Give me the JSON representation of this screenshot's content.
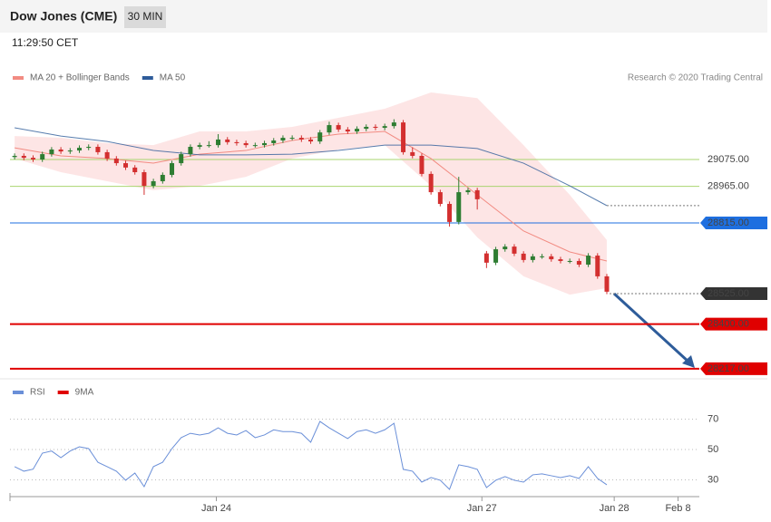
{
  "header": {
    "title": "Dow Jones (CME)",
    "interval": "30 MIN",
    "time": "11:29:50 CET",
    "credit": "Research © 2020 Trading Central"
  },
  "chart_data": [
    {
      "type": "candlestick",
      "legend": [
        {
          "name": "MA 20 + Bollinger Bands",
          "color": "#f28b82"
        },
        {
          "name": "MA 50",
          "color": "#2e5c9a"
        }
      ],
      "xlim": [
        -0.5,
        74
      ],
      "ylim": [
        28187,
        29376
      ],
      "up_color": "#2e7d32",
      "down_color": "#d32f2f",
      "open": [
        29085,
        29090,
        29082,
        29075,
        29097,
        29116,
        29108,
        29112,
        29123,
        29127,
        29105,
        29079,
        29060,
        29042,
        29023,
        28967,
        28986,
        29012,
        29060,
        29097,
        29127,
        29134,
        29134,
        29157,
        29146,
        29142,
        29134,
        29134,
        29142,
        29153,
        29164,
        29164,
        29157,
        29149,
        29186,
        29216,
        29198,
        29190,
        29201,
        29209,
        29205,
        29212,
        29227,
        29105,
        29090,
        29016,
        28941,
        28893,
        28819,
        28941,
        28949,
        28690,
        28652,
        28707,
        28718,
        28689,
        28663,
        28678,
        28678,
        28666,
        28659,
        28659,
        28644,
        28681,
        28596
      ],
      "high": [
        29100,
        29100,
        29092,
        29107,
        29126,
        29126,
        29122,
        29133,
        29137,
        29137,
        29115,
        29089,
        29070,
        29052,
        29033,
        28996,
        29022,
        29070,
        29107,
        29137,
        29144,
        29150,
        29179,
        29167,
        29156,
        29152,
        29144,
        29152,
        29163,
        29174,
        29174,
        29174,
        29167,
        29196,
        29230,
        29226,
        29208,
        29211,
        29219,
        29219,
        29222,
        29240,
        29237,
        29125,
        29100,
        29026,
        28951,
        28903,
        29004,
        28959,
        28959,
        28700,
        28717,
        28728,
        28728,
        28699,
        28688,
        28688,
        28688,
        28676,
        28669,
        28669,
        28691,
        28691,
        28606
      ],
      "low": [
        29075,
        29072,
        29065,
        29065,
        29087,
        29098,
        29098,
        29102,
        29113,
        29095,
        29069,
        29050,
        29032,
        29013,
        28930,
        28957,
        28976,
        29002,
        29050,
        29087,
        29117,
        29124,
        29124,
        29136,
        29132,
        29124,
        29124,
        29124,
        29132,
        29143,
        29154,
        29147,
        29139,
        29139,
        29176,
        29188,
        29180,
        29180,
        29191,
        29195,
        29195,
        29202,
        29095,
        29080,
        29006,
        28931,
        28883,
        28800,
        28809,
        28931,
        28870,
        28630,
        28642,
        28697,
        28679,
        28653,
        28653,
        28668,
        28656,
        28649,
        28649,
        28634,
        28634,
        28586,
        28523
      ],
      "close": [
        29090,
        29082,
        29075,
        29097,
        29116,
        29108,
        29112,
        29123,
        29127,
        29105,
        29079,
        29060,
        29042,
        29023,
        28967,
        28986,
        29012,
        29060,
        29097,
        29127,
        29134,
        29134,
        29157,
        29146,
        29142,
        29134,
        29134,
        29142,
        29153,
        29164,
        29164,
        29157,
        29149,
        29186,
        29216,
        29198,
        29190,
        29201,
        29209,
        29205,
        29212,
        29227,
        29105,
        29090,
        29016,
        28941,
        28893,
        28819,
        28941,
        28949,
        28912,
        28652,
        28707,
        28718,
        28689,
        28663,
        28678,
        28678,
        28666,
        28659,
        28659,
        28644,
        28681,
        28596,
        28533
      ],
      "overlay_x": [
        0,
        5,
        10,
        15,
        20,
        25,
        30,
        35,
        40,
        45,
        50,
        55,
        60,
        64
      ],
      "bollinger": {
        "color": "#fde0e0",
        "upper": [
          29171,
          29164,
          29142,
          29134,
          29190,
          29190,
          29209,
          29246,
          29283,
          29350,
          29327,
          29134,
          28930,
          28745
        ],
        "lower": [
          29079,
          29023,
          28986,
          28949,
          28967,
          29004,
          29079,
          29116,
          29134,
          28967,
          28756,
          28596,
          28521,
          28548
        ]
      },
      "ma20": [
        29123,
        29090,
        29079,
        29060,
        29097,
        29112,
        29153,
        29179,
        29190,
        29079,
        28930,
        28782,
        28696,
        28659
      ],
      "ma50": [
        29205,
        29171,
        29149,
        29112,
        29094,
        29094,
        29097,
        29112,
        29134,
        29134,
        29120,
        29060,
        28967,
        28886
      ],
      "levels": [
        {
          "value": 29075,
          "label": "29075.00",
          "color": "#a9d46f"
        },
        {
          "value": 28965,
          "label": "28965.00",
          "color": "#a9d46f"
        },
        {
          "value": 28815,
          "label": "28815.00",
          "color": "#1e6fe0"
        },
        {
          "value": 28525,
          "label": "28525.00",
          "color": "#333333"
        },
        {
          "value": 28400,
          "label": "28400.00",
          "color": "#e00000"
        },
        {
          "value": 28217,
          "label": "28217.00",
          "color": "#e00000"
        }
      ]
    },
    {
      "type": "line",
      "legend": [
        {
          "name": "RSI",
          "color": "#6a8fd8"
        },
        {
          "name": "9MA",
          "color": "#e00000"
        }
      ],
      "xlim": [
        -0.5,
        74
      ],
      "ylim": [
        20.7,
        79.3
      ],
      "yticks": [
        70,
        50,
        30
      ],
      "xticks": [
        {
          "value": 21.8,
          "label": "Jan 24"
        },
        {
          "value": 50.5,
          "label": "Jan 27"
        },
        {
          "value": 64.8,
          "label": "Jan 28"
        },
        {
          "value": 71.7,
          "label": "Feb 8"
        }
      ],
      "series": [
        {
          "name": "RSI",
          "color": "#6a8fd8",
          "values": [
            38.7,
            35.7,
            37,
            47.6,
            49,
            44.6,
            49,
            51.8,
            50.6,
            41.6,
            38.7,
            35.7,
            29.7,
            34.5,
            25.5,
            38.7,
            41.6,
            50.6,
            57.8,
            60.7,
            59.6,
            60.7,
            64.3,
            60.7,
            59.6,
            62.5,
            57.8,
            59.6,
            63,
            61.8,
            61.8,
            60.7,
            54.8,
            68.5,
            64.3,
            60.7,
            57.2,
            61.8,
            63,
            60.7,
            63,
            67.3,
            36.9,
            35.7,
            28.5,
            31.5,
            29.7,
            23.7,
            39.9,
            38.7,
            36.9,
            24.9,
            29.7,
            32.1,
            29.7,
            28.5,
            33.3,
            33.9,
            32.7,
            31.5,
            32.7,
            30.9,
            38.7,
            30.9,
            26.7
          ]
        }
      ]
    }
  ]
}
